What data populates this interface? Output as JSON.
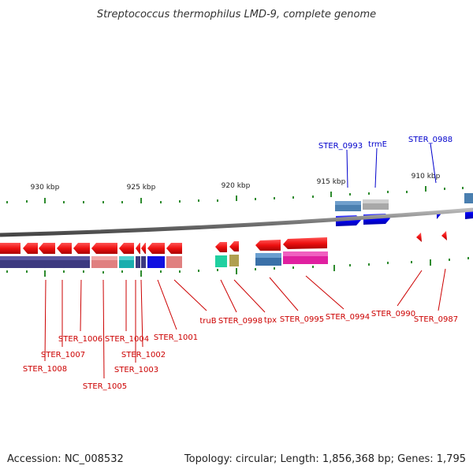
{
  "title": "Streptococcus thermophilus LMD-9, complete genome",
  "accession": "Accession: NC_008532",
  "summary": "Topology: circular; Length: 1,856,368 bp; Genes: 1,795",
  "colors": {
    "forward_label": "#0000cc",
    "reverse_label": "#cc0000",
    "forward_gene": "#0000ee",
    "reverse_gene": "#ee1111",
    "tick": "#2e8b2e",
    "backbone": "#777777"
  },
  "scale_ticks": [
    {
      "label": "930 kbp"
    },
    {
      "label": "925 kbp"
    },
    {
      "label": "920 kbp"
    },
    {
      "label": "915 kbp"
    },
    {
      "label": "910 kbp"
    }
  ],
  "forward_labels": [
    {
      "label": "STER_0993"
    },
    {
      "label": "trmE"
    },
    {
      "label": "STER_0988"
    }
  ],
  "reverse_labels": [
    {
      "label": "STER_1008"
    },
    {
      "label": "STER_1007"
    },
    {
      "label": "STER_1006"
    },
    {
      "label": "STER_1005"
    },
    {
      "label": "STER_1004"
    },
    {
      "label": "STER_1003"
    },
    {
      "label": "STER_1002"
    },
    {
      "label": "STER_1001"
    },
    {
      "label": "truB"
    },
    {
      "label": "STER_0998"
    },
    {
      "label": "tpx"
    },
    {
      "label": "STER_0995"
    },
    {
      "label": "STER_0994"
    },
    {
      "label": "STER_0990"
    },
    {
      "label": "STER_0987"
    }
  ]
}
